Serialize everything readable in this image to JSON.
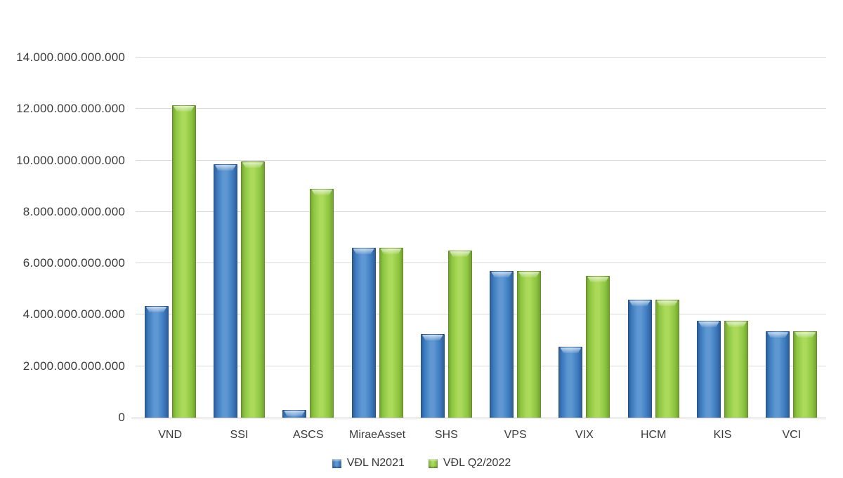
{
  "chart_data": {
    "type": "bar",
    "title": "",
    "xlabel": "",
    "ylabel": "",
    "categories": [
      "VND",
      "SSI",
      "ASCS",
      "MiraeAsset",
      "SHS",
      "VPS",
      "VIX",
      "HCM",
      "KIS",
      "VCI"
    ],
    "series": [
      {
        "name": "VĐL N2021",
        "values": [
          4350000000000,
          9850000000000,
          300000000000,
          6600000000000,
          3250000000000,
          5700000000000,
          2750000000000,
          4580000000000,
          3770000000000,
          3350000000000
        ]
      },
      {
        "name": "VĐL Q2/2022",
        "values": [
          12150000000000,
          9950000000000,
          8900000000000,
          6600000000000,
          6500000000000,
          5700000000000,
          5500000000000,
          4580000000000,
          3770000000000,
          3350000000000
        ]
      }
    ],
    "ylim": [
      0,
      14000000000000
    ],
    "y_tick_step": 2000000000000,
    "y_tick_labels": [
      "0",
      "2.000.000.000.000",
      "4.000.000.000.000",
      "6.000.000.000.000",
      "8.000.000.000.000",
      "10.000.000.000.000",
      "12.000.000.000.000",
      "14.000.000.000.000"
    ],
    "grid": true,
    "legend_position": "bottom"
  },
  "colors": {
    "background": "#ffffff",
    "gridline": "#d9d9d9",
    "text": "#3a3a3a",
    "series": [
      {
        "name": "blue",
        "main": "#3d7bbf",
        "light": "#5e97d2",
        "dark": "#2a5a94"
      },
      {
        "name": "green",
        "main": "#8dc63f",
        "light": "#abd95a",
        "dark": "#6f9c2f"
      }
    ]
  }
}
